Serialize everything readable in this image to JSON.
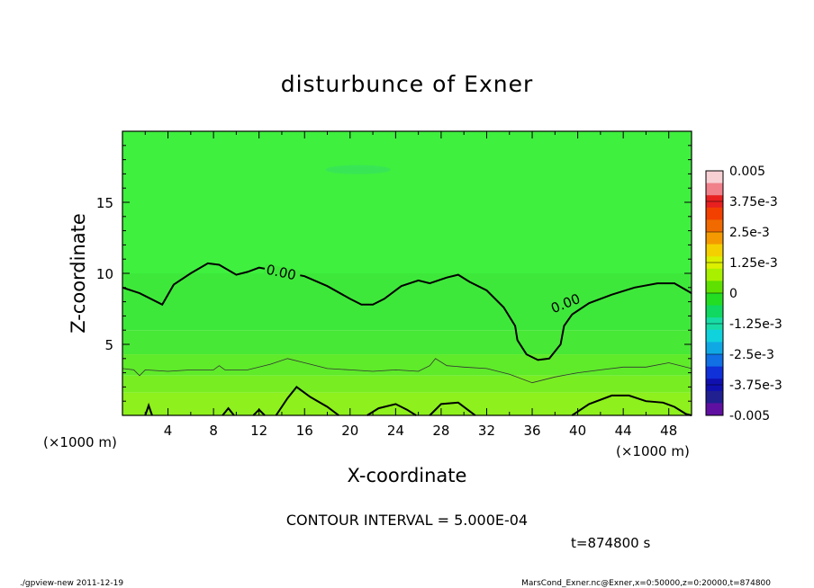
{
  "chart_data": {
    "type": "heatmap",
    "title": "disturbunce of Exner",
    "xlabel": "X-coordinate",
    "ylabel": "Z-coordinate",
    "x_unit": "(×1000 m)",
    "y_unit": "(×1000 m)",
    "xlim": [
      0,
      50
    ],
    "ylim": [
      0,
      20
    ],
    "x_ticks": [
      4,
      8,
      12,
      16,
      20,
      24,
      28,
      32,
      36,
      40,
      44,
      48
    ],
    "y_ticks": [
      5,
      10,
      15
    ],
    "contour_interval": "CONTOUR INTERVAL = 5.000E-04",
    "time_label": "t=874800 s",
    "contour_labels": [
      "0.00",
      "0.00"
    ],
    "zero_contour": [
      [
        0,
        9.0
      ],
      [
        1.5,
        8.6
      ],
      [
        3.5,
        7.8
      ],
      [
        4.5,
        9.2
      ],
      [
        6,
        10.0
      ],
      [
        7.5,
        10.7
      ],
      [
        8.5,
        10.6
      ],
      [
        10,
        9.9
      ],
      [
        11,
        10.1
      ],
      [
        12,
        10.4
      ],
      [
        14,
        10.1
      ],
      [
        16,
        9.8
      ],
      [
        18,
        9.1
      ],
      [
        20,
        8.2
      ],
      [
        21,
        7.8
      ],
      [
        22,
        7.8
      ],
      [
        23,
        8.2
      ],
      [
        24.5,
        9.1
      ],
      [
        26,
        9.5
      ],
      [
        27,
        9.3
      ],
      [
        28.5,
        9.7
      ],
      [
        29.5,
        9.9
      ],
      [
        30.5,
        9.4
      ],
      [
        32,
        8.8
      ],
      [
        33.5,
        7.6
      ],
      [
        34.5,
        6.3
      ],
      [
        34.7,
        5.3
      ],
      [
        35.5,
        4.3
      ],
      [
        36.5,
        3.9
      ],
      [
        37.5,
        4.0
      ],
      [
        38.5,
        5.0
      ],
      [
        38.8,
        6.3
      ],
      [
        39.5,
        7.1
      ],
      [
        41,
        7.9
      ],
      [
        43,
        8.5
      ],
      [
        45,
        9.0
      ],
      [
        47,
        9.3
      ],
      [
        48.5,
        9.3
      ],
      [
        50,
        8.6
      ]
    ],
    "thin_contour": [
      [
        0,
        3.3
      ],
      [
        1,
        3.2
      ],
      [
        1.5,
        2.8
      ],
      [
        2,
        3.2
      ],
      [
        4,
        3.1
      ],
      [
        6,
        3.2
      ],
      [
        8,
        3.2
      ],
      [
        8.5,
        3.5
      ],
      [
        9,
        3.2
      ],
      [
        11,
        3.2
      ],
      [
        13,
        3.6
      ],
      [
        14.5,
        4.0
      ],
      [
        16,
        3.7
      ],
      [
        18,
        3.3
      ],
      [
        20,
        3.2
      ],
      [
        22,
        3.1
      ],
      [
        24,
        3.2
      ],
      [
        26,
        3.1
      ],
      [
        27,
        3.5
      ],
      [
        27.5,
        4.0
      ],
      [
        28.5,
        3.5
      ],
      [
        30,
        3.4
      ],
      [
        32,
        3.3
      ],
      [
        34,
        2.9
      ],
      [
        36,
        2.3
      ],
      [
        38,
        2.7
      ],
      [
        40,
        3.0
      ],
      [
        42,
        3.2
      ],
      [
        44,
        3.4
      ],
      [
        46,
        3.4
      ],
      [
        48,
        3.7
      ],
      [
        50,
        3.3
      ]
    ],
    "lower_contours": [
      [
        [
          2,
          0
        ],
        [
          2.3,
          0.7
        ],
        [
          2.6,
          0
        ]
      ],
      [
        [
          8.8,
          0
        ],
        [
          9.3,
          0.5
        ],
        [
          9.8,
          0
        ]
      ],
      [
        [
          11.5,
          0
        ],
        [
          12,
          0.4
        ],
        [
          12.5,
          0
        ]
      ],
      [
        [
          13.5,
          0
        ],
        [
          14.5,
          1.2
        ],
        [
          15.3,
          2.0
        ],
        [
          16.5,
          1.3
        ],
        [
          18,
          0.6
        ],
        [
          19,
          0
        ]
      ],
      [
        [
          21.5,
          0
        ],
        [
          22.5,
          0.5
        ],
        [
          24,
          0.8
        ],
        [
          25,
          0.4
        ],
        [
          25.8,
          0
        ]
      ],
      [
        [
          27,
          0
        ],
        [
          28,
          0.8
        ],
        [
          29.5,
          0.9
        ],
        [
          30.5,
          0.3
        ],
        [
          31,
          0
        ]
      ],
      [
        [
          39.5,
          0
        ],
        [
          41,
          0.8
        ],
        [
          43,
          1.4
        ],
        [
          44.5,
          1.4
        ],
        [
          46,
          1.0
        ],
        [
          47.5,
          0.9
        ],
        [
          48.5,
          0.6
        ],
        [
          49.5,
          0.1
        ],
        [
          50,
          0
        ]
      ]
    ],
    "colorbar": {
      "labels": [
        "0.005",
        "3.75e-3",
        "2.5e-3",
        "1.25e-3",
        "0",
        "-1.25e-3",
        "-2.5e-3",
        "-3.75e-3",
        "-0.005"
      ],
      "colors": [
        "#f7d0d4",
        "#f0808a",
        "#e82020",
        "#f24000",
        "#f06a00",
        "#f49a00",
        "#f5d000",
        "#dcf000",
        "#a8f000",
        "#5ee000",
        "#22dd22",
        "#10d860",
        "#18dca6",
        "#10d2dc",
        "#10a8e4",
        "#1070e4",
        "#1030d8",
        "#1010b0",
        "#202090",
        "#6010a0"
      ],
      "range": [
        -0.005,
        0.005
      ]
    },
    "field_bands": [
      {
        "top_z": 20,
        "color": "#3ff03f"
      },
      {
        "top_z": 10,
        "color": "#3ee83a"
      },
      {
        "top_z": 6,
        "color": "#48e836"
      },
      {
        "top_z": 4.3,
        "color": "#5fea2a"
      },
      {
        "top_z": 2.8,
        "color": "#78ee22"
      },
      {
        "top_z": 1.6,
        "color": "#8ef01c"
      }
    ]
  },
  "footer": {
    "left": "./gpview-new  2011-12-19",
    "right": "MarsCond_Exner.nc@Exner,x=0:50000,z=0:20000,t=874800"
  }
}
